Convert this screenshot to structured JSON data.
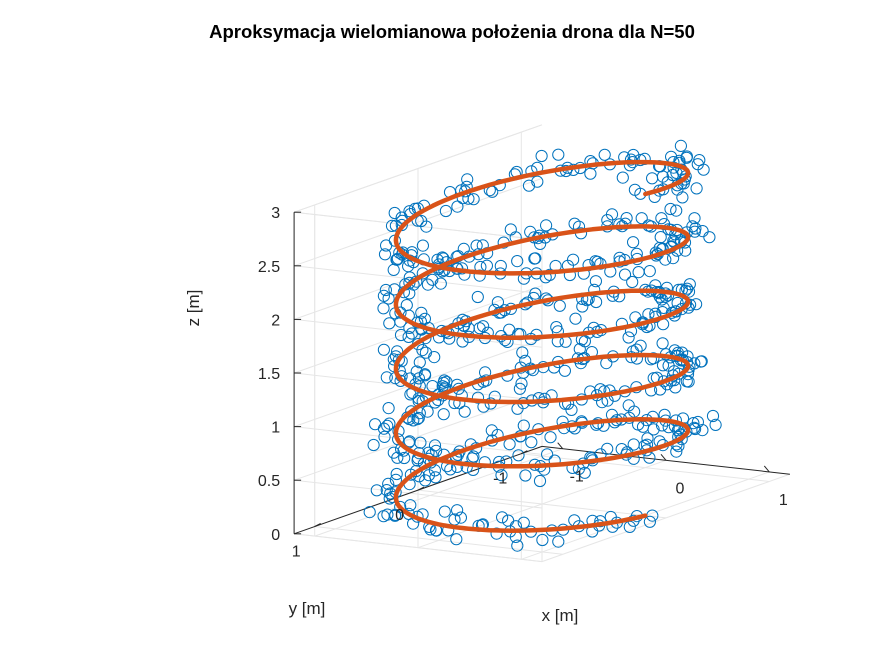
{
  "chart_data": {
    "type": "scatter",
    "title": "Aproksymacja wielomianowa położenia drona dla N=50",
    "xlabel": "x [m]",
    "ylabel": "y [m]",
    "zlabel": "z [m]",
    "xticks": [
      "-1",
      "0",
      "1"
    ],
    "yticks": [
      "-1",
      "0",
      "1"
    ],
    "zticks": [
      "0",
      "0.5",
      "1",
      "1.5",
      "2",
      "2.5",
      "3"
    ],
    "xlim": [
      -1.2,
      1.2
    ],
    "ylim": [
      -1.2,
      1.2
    ],
    "zlim": [
      0,
      3
    ],
    "grid": true,
    "colors": {
      "measured": "#0072BD",
      "fit": "#D95319",
      "grid": "#e6e6e6",
      "axis": "#262626"
    },
    "series": [
      {
        "kind": "measured-points",
        "marker": "circle-open",
        "generator": {
          "t_range": [
            0,
            1
          ],
          "count": 700,
          "turns": 5,
          "radius": 1.0,
          "z_range": [
            0,
            3
          ],
          "noise": 0.09
        }
      },
      {
        "kind": "polynomial-fit-line",
        "generator": {
          "t_range": [
            0,
            1
          ],
          "count": 600,
          "turns": 5,
          "radius": 1.0,
          "z_range": [
            0,
            3
          ]
        }
      }
    ]
  }
}
